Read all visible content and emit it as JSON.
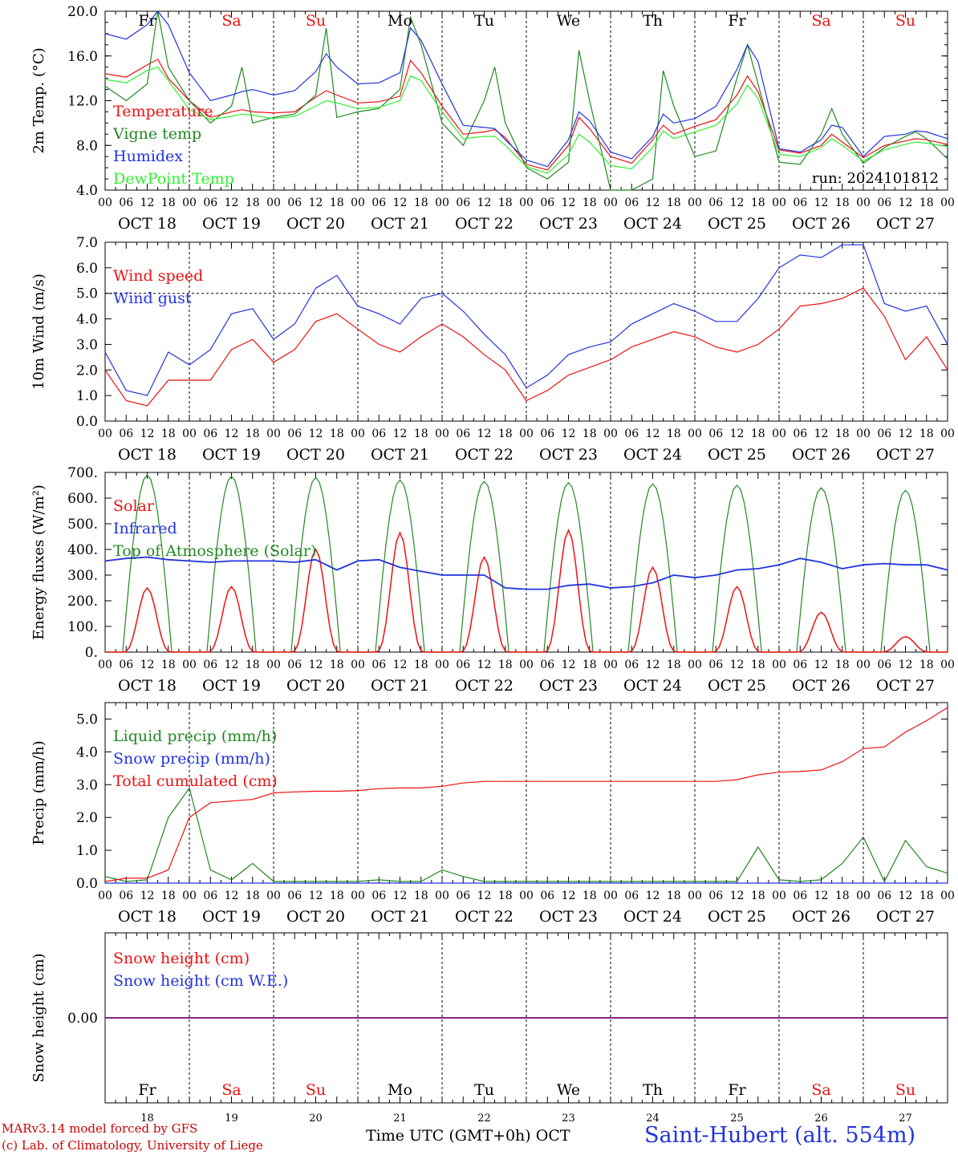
{
  "chart_data": [
    {
      "type": "line",
      "ylabel": "2m Temp. (°C)",
      "ylim": [
        4.0,
        20.0
      ],
      "yticks": [
        "4.0",
        "8.0",
        "12.0",
        "16.0",
        "20.0"
      ],
      "hline": null,
      "run_label": "run: 2024101812",
      "x_hours": [
        0,
        6,
        12,
        15,
        18,
        24,
        30,
        36,
        39,
        42,
        48,
        54,
        60,
        63,
        66,
        72,
        78,
        84,
        87,
        90,
        96,
        102,
        108,
        111,
        114,
        120,
        126,
        132,
        135,
        138,
        144,
        150,
        156,
        159,
        162,
        168,
        174,
        180,
        183,
        186,
        192,
        198,
        204,
        207,
        210,
        216,
        222,
        228,
        231,
        234,
        240
      ],
      "series": [
        {
          "name": "Temperature",
          "color": "#ee1111",
          "values": [
            14.4,
            14.1,
            15.2,
            15.7,
            14.0,
            12.0,
            10.5,
            11.0,
            11.2,
            11.0,
            10.9,
            11.0,
            12.3,
            12.9,
            12.5,
            11.8,
            11.9,
            12.4,
            15.6,
            14.5,
            11.5,
            9.0,
            9.2,
            9.4,
            8.7,
            6.3,
            5.8,
            8.0,
            10.5,
            9.5,
            7.0,
            6.4,
            8.5,
            9.8,
            9.0,
            9.7,
            10.3,
            12.5,
            14.2,
            12.8,
            7.6,
            7.3,
            8.0,
            9.0,
            8.3,
            6.9,
            8.0,
            8.4,
            8.6,
            8.5,
            8.1
          ]
        },
        {
          "name": "Vigne temp",
          "color": "#228822",
          "values": [
            13.3,
            12.0,
            13.5,
            20.0,
            15.0,
            12.0,
            10.0,
            11.5,
            15.0,
            10.0,
            10.5,
            10.8,
            12.5,
            18.5,
            10.5,
            11.0,
            11.3,
            13.0,
            19.5,
            17.0,
            10.0,
            8.0,
            12.0,
            15.0,
            10.0,
            6.0,
            5.0,
            6.5,
            16.5,
            12.0,
            4.0,
            3.5,
            5.0,
            14.7,
            11.5,
            7.0,
            7.5,
            14.0,
            17.0,
            13.5,
            6.5,
            6.3,
            9.0,
            11.3,
            9.0,
            6.4,
            7.8,
            8.8,
            9.2,
            8.6,
            6.8
          ]
        },
        {
          "name": "Humidex",
          "color": "#2233dd",
          "values": [
            18.0,
            17.5,
            18.8,
            20.0,
            18.8,
            14.5,
            12.0,
            12.5,
            12.8,
            13.0,
            12.5,
            12.9,
            14.6,
            16.2,
            15.0,
            13.5,
            13.6,
            14.5,
            18.5,
            17.4,
            13.5,
            9.8,
            9.6,
            9.5,
            8.5,
            6.7,
            6.1,
            8.5,
            11.0,
            10.2,
            7.4,
            6.8,
            8.8,
            10.8,
            10.0,
            10.4,
            11.5,
            14.8,
            17.0,
            15.5,
            7.7,
            7.4,
            8.5,
            9.8,
            9.6,
            7.0,
            8.8,
            9.0,
            9.3,
            9.2,
            8.6
          ]
        },
        {
          "name": "DewPoint Temp",
          "color": "#33ee33",
          "values": [
            13.9,
            13.6,
            14.7,
            15.0,
            13.8,
            11.2,
            10.3,
            10.6,
            10.8,
            10.7,
            10.4,
            10.6,
            11.5,
            12.0,
            11.8,
            11.3,
            11.4,
            12.0,
            14.2,
            13.8,
            11.0,
            8.6,
            8.8,
            8.8,
            8.0,
            6.1,
            5.5,
            7.2,
            9.0,
            8.3,
            6.2,
            5.9,
            7.8,
            9.3,
            8.6,
            9.2,
            9.8,
            11.7,
            13.4,
            12.2,
            7.2,
            7.0,
            7.8,
            8.6,
            8.0,
            6.6,
            7.6,
            8.1,
            8.3,
            8.2,
            7.9
          ]
        }
      ]
    },
    {
      "type": "line",
      "ylabel": "10m Wind (m/s)",
      "ylim": [
        0.0,
        7.0
      ],
      "yticks": [
        "0.0",
        "1.0",
        "2.0",
        "3.0",
        "4.0",
        "5.0",
        "6.0",
        "7.0"
      ],
      "hline": 5.0,
      "x_hours": [
        0,
        6,
        12,
        18,
        24,
        30,
        36,
        42,
        48,
        54,
        60,
        66,
        72,
        78,
        84,
        90,
        96,
        102,
        108,
        114,
        120,
        126,
        132,
        138,
        144,
        150,
        156,
        162,
        168,
        174,
        180,
        186,
        192,
        198,
        204,
        210,
        216,
        222,
        228,
        234,
        240
      ],
      "series": [
        {
          "name": "Wind speed",
          "color": "#ee1111",
          "values": [
            2.0,
            0.8,
            0.6,
            1.6,
            1.6,
            1.6,
            2.8,
            3.2,
            2.3,
            2.8,
            3.9,
            4.2,
            3.6,
            3.0,
            2.7,
            3.3,
            3.8,
            3.3,
            2.6,
            2.0,
            0.8,
            1.2,
            1.8,
            2.1,
            2.4,
            2.9,
            3.2,
            3.5,
            3.3,
            2.9,
            2.7,
            3.0,
            3.6,
            4.5,
            4.6,
            4.8,
            5.2,
            4.1,
            2.4,
            3.3,
            2.0
          ]
        },
        {
          "name": "Wind gust",
          "color": "#2233dd",
          "values": [
            2.7,
            1.2,
            1.0,
            2.7,
            2.2,
            2.8,
            4.2,
            4.4,
            3.2,
            3.8,
            5.2,
            5.7,
            4.5,
            4.2,
            3.8,
            4.8,
            5.0,
            4.3,
            3.4,
            2.6,
            1.3,
            1.8,
            2.6,
            2.9,
            3.1,
            3.8,
            4.2,
            4.6,
            4.3,
            3.9,
            3.9,
            4.8,
            6.0,
            6.5,
            6.4,
            6.9,
            6.9,
            4.6,
            4.3,
            4.5,
            3.0
          ]
        }
      ]
    },
    {
      "type": "line",
      "ylabel": "Energy fluxes (W/m²)",
      "ylim": [
        0,
        700
      ],
      "yticks": [
        "0.",
        "100.",
        "200.",
        "300.",
        "400.",
        "500.",
        "600.",
        "700."
      ],
      "hline": null,
      "peaks": {
        "solar_days": [
          0,
          1,
          2,
          3,
          4,
          5,
          6,
          7,
          8,
          9
        ],
        "solar_peak": [
          250,
          255,
          400,
          465,
          370,
          475,
          330,
          255,
          155,
          60
        ],
        "toa_peak": [
          690,
          685,
          680,
          670,
          665,
          660,
          655,
          650,
          640,
          630
        ]
      },
      "series": [
        {
          "name": "Solar",
          "color": "#ee1111"
        },
        {
          "name": "Infrared",
          "color": "#2233dd",
          "x_hours": [
            0,
            6,
            12,
            18,
            24,
            30,
            36,
            42,
            48,
            54,
            60,
            66,
            72,
            78,
            84,
            90,
            96,
            102,
            108,
            114,
            120,
            126,
            132,
            138,
            144,
            150,
            156,
            162,
            168,
            174,
            180,
            186,
            192,
            198,
            204,
            210,
            216,
            222,
            228,
            234,
            240
          ],
          "values": [
            355,
            365,
            370,
            360,
            355,
            350,
            355,
            355,
            355,
            350,
            360,
            320,
            355,
            360,
            330,
            315,
            300,
            300,
            300,
            250,
            245,
            245,
            260,
            265,
            250,
            255,
            270,
            300,
            290,
            300,
            320,
            325,
            340,
            365,
            350,
            325,
            340,
            345,
            340,
            340,
            320
          ]
        },
        {
          "name": "Top of Atmosphere (Solar)",
          "color": "#228822"
        }
      ]
    },
    {
      "type": "line",
      "ylabel": "Precip (mm/h)",
      "ylim": [
        0.0,
        5.5
      ],
      "yticks": [
        "0.0",
        "1.0",
        "2.0",
        "3.0",
        "4.0",
        "5.0"
      ],
      "hline": null,
      "x_hours": [
        0,
        6,
        12,
        18,
        24,
        30,
        36,
        42,
        48,
        54,
        60,
        66,
        72,
        78,
        84,
        90,
        96,
        102,
        108,
        114,
        120,
        126,
        132,
        138,
        144,
        150,
        156,
        162,
        168,
        174,
        180,
        186,
        192,
        198,
        204,
        210,
        216,
        222,
        228,
        234,
        240
      ],
      "series": [
        {
          "name": "Liquid precip (mm/h)",
          "color": "#228822",
          "values": [
            0.2,
            0.05,
            0.1,
            2.0,
            2.9,
            0.4,
            0.1,
            0.6,
            0.05,
            0.05,
            0.05,
            0.05,
            0.05,
            0.1,
            0.05,
            0.05,
            0.4,
            0.2,
            0.05,
            0.05,
            0.05,
            0.05,
            0.05,
            0.05,
            0.05,
            0.05,
            0.05,
            0.05,
            0.05,
            0.05,
            0.05,
            1.1,
            0.1,
            0.05,
            0.1,
            0.6,
            1.4,
            0.05,
            1.3,
            0.5,
            0.3
          ]
        },
        {
          "name": "Snow precip (mm/h)",
          "color": "#2233dd",
          "values": [
            0,
            0,
            0,
            0,
            0,
            0,
            0,
            0,
            0,
            0,
            0,
            0,
            0,
            0,
            0,
            0,
            0,
            0,
            0,
            0,
            0,
            0,
            0,
            0,
            0,
            0,
            0,
            0,
            0,
            0,
            0,
            0,
            0,
            0,
            0,
            0,
            0,
            0,
            0,
            0,
            0
          ]
        },
        {
          "name": "Total cumulated (cm)",
          "color": "#ee1111",
          "values": [
            0.05,
            0.15,
            0.15,
            0.4,
            2.0,
            2.45,
            2.5,
            2.55,
            2.75,
            2.78,
            2.8,
            2.8,
            2.82,
            2.88,
            2.9,
            2.9,
            2.95,
            3.05,
            3.1,
            3.1,
            3.1,
            3.1,
            3.1,
            3.1,
            3.1,
            3.1,
            3.1,
            3.1,
            3.1,
            3.1,
            3.15,
            3.3,
            3.38,
            3.4,
            3.45,
            3.7,
            4.1,
            4.15,
            4.6,
            4.95,
            5.35
          ]
        }
      ]
    },
    {
      "type": "line",
      "ylabel": "Snow height (cm)",
      "ylim": [
        -1.0,
        1.0
      ],
      "yticks": [
        "0.00"
      ],
      "hline": null,
      "x_hours": [
        0,
        240
      ],
      "series": [
        {
          "name": "Snow height (cm)",
          "color": "#ee1111",
          "values": [
            0,
            0
          ]
        },
        {
          "name": "Snow height (cm W.E.)",
          "color": "#2233dd",
          "values": [
            0,
            0
          ]
        }
      ]
    }
  ],
  "x_axis": {
    "hour_labels": [
      "00",
      "06",
      "12",
      "18"
    ],
    "date_labels": [
      "OCT 18",
      "OCT 19",
      "OCT 20",
      "OCT 21",
      "OCT 22",
      "OCT 23",
      "OCT 24",
      "OCT 25",
      "OCT 26",
      "OCT 27"
    ],
    "day_names": [
      "Fr",
      "Sa",
      "Su",
      "Mo",
      "Tu",
      "We",
      "Th",
      "Fr",
      "Sa",
      "Su"
    ],
    "day_colors": [
      "#000000",
      "#ee1111",
      "#ee1111",
      "#000000",
      "#000000",
      "#000000",
      "#000000",
      "#000000",
      "#ee1111",
      "#ee1111"
    ],
    "day_numbers": [
      "18",
      "19",
      "20",
      "21",
      "22",
      "23",
      "24",
      "25",
      "26",
      "27"
    ],
    "title": "Time UTC (GMT+0h)",
    "month": "OCT"
  },
  "footer": {
    "credit_line1": "MARv3.14 model forced by GFS",
    "credit_line2": "(c) Lab. of Climatology, University of Liege",
    "station": "Saint-Hubert (alt. 554m)"
  }
}
